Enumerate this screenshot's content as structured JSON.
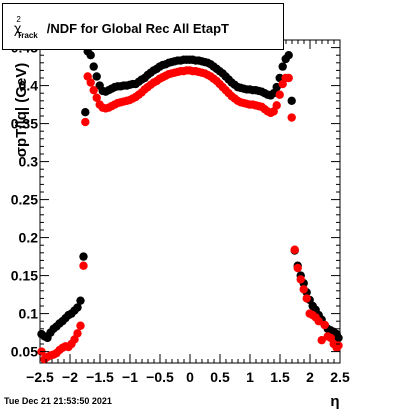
{
  "header": {
    "title_prefix": "χ",
    "title_sup": "2",
    "title_sub": "Track",
    "title_rest": "/NDF for Global Rec All EtapT"
  },
  "footer": {
    "timestamp": "Tue Dec 21 21:53:50 2021"
  },
  "chart_data": {
    "type": "scatter",
    "title": "χ²_Track/NDF for Global Rec All EtapT",
    "xlabel": "η",
    "ylabel": "σpT/|q| (GeV)",
    "xlim": [
      -2.5,
      2.5
    ],
    "ylim": [
      0.035,
      0.46
    ],
    "x_ticks": [
      -2.5,
      -2,
      -1.5,
      -1,
      -0.5,
      0,
      0.5,
      1,
      1.5,
      2,
      2.5
    ],
    "x_tick_labels": [
      "−2.5",
      "−2",
      "−1.5",
      "−1",
      "−0.5",
      "0",
      "0.5",
      "1",
      "1.5",
      "2",
      "2.5"
    ],
    "y_ticks": [
      0.05,
      0.1,
      0.15,
      0.2,
      0.25,
      0.3,
      0.35,
      0.4,
      0.45
    ],
    "y_tick_labels": [
      "0.05",
      "0.1",
      "0.15",
      "0.2",
      "0.25",
      "0.3",
      "0.35",
      "0.4",
      "0.45"
    ],
    "series": [
      {
        "color": "#000000",
        "points": [
          [
            -2.475,
            0.073
          ],
          [
            -2.425,
            0.07
          ],
          [
            -2.375,
            0.068
          ],
          [
            -2.325,
            0.075
          ],
          [
            -2.275,
            0.08
          ],
          [
            -2.225,
            0.083
          ],
          [
            -2.175,
            0.087
          ],
          [
            -2.125,
            0.09
          ],
          [
            -2.075,
            0.094
          ],
          [
            -2.025,
            0.098
          ],
          [
            -1.975,
            0.1
          ],
          [
            -1.925,
            0.104
          ],
          [
            -1.875,
            0.108
          ],
          [
            -1.825,
            0.117
          ],
          [
            -1.775,
            0.175
          ],
          [
            -1.745,
            0.365
          ],
          [
            -1.705,
            0.445
          ],
          [
            -1.655,
            0.44
          ],
          [
            -1.605,
            0.425
          ],
          [
            -1.555,
            0.412
          ],
          [
            -1.505,
            0.4
          ],
          [
            -1.455,
            0.393
          ],
          [
            -1.405,
            0.392
          ],
          [
            -1.355,
            0.394
          ],
          [
            -1.305,
            0.396
          ],
          [
            -1.255,
            0.398
          ],
          [
            -1.205,
            0.399
          ],
          [
            -1.155,
            0.399
          ],
          [
            -1.105,
            0.4
          ],
          [
            -1.055,
            0.4
          ],
          [
            -1.005,
            0.401
          ],
          [
            -0.955,
            0.402
          ],
          [
            -0.905,
            0.402
          ],
          [
            -0.855,
            0.405
          ],
          [
            -0.805,
            0.408
          ],
          [
            -0.755,
            0.41
          ],
          [
            -0.705,
            0.414
          ],
          [
            -0.655,
            0.417
          ],
          [
            -0.605,
            0.42
          ],
          [
            -0.555,
            0.422
          ],
          [
            -0.505,
            0.425
          ],
          [
            -0.455,
            0.427
          ],
          [
            -0.405,
            0.428
          ],
          [
            -0.355,
            0.43
          ],
          [
            -0.305,
            0.431
          ],
          [
            -0.255,
            0.432
          ],
          [
            -0.205,
            0.433
          ],
          [
            -0.155,
            0.433
          ],
          [
            -0.105,
            0.434
          ],
          [
            -0.055,
            0.434
          ],
          [
            -0.005,
            0.434
          ],
          [
            0.045,
            0.434
          ],
          [
            0.095,
            0.433
          ],
          [
            0.145,
            0.433
          ],
          [
            0.195,
            0.432
          ],
          [
            0.245,
            0.431
          ],
          [
            0.295,
            0.43
          ],
          [
            0.345,
            0.428
          ],
          [
            0.395,
            0.425
          ],
          [
            0.445,
            0.422
          ],
          [
            0.495,
            0.419
          ],
          [
            0.545,
            0.416
          ],
          [
            0.595,
            0.412
          ],
          [
            0.645,
            0.408
          ],
          [
            0.695,
            0.404
          ],
          [
            0.745,
            0.401
          ],
          [
            0.795,
            0.398
          ],
          [
            0.845,
            0.397
          ],
          [
            0.895,
            0.396
          ],
          [
            0.945,
            0.395
          ],
          [
            0.995,
            0.395
          ],
          [
            1.045,
            0.394
          ],
          [
            1.095,
            0.394
          ],
          [
            1.145,
            0.393
          ],
          [
            1.195,
            0.392
          ],
          [
            1.245,
            0.39
          ],
          [
            1.295,
            0.388
          ],
          [
            1.345,
            0.387
          ],
          [
            1.395,
            0.39
          ],
          [
            1.445,
            0.398
          ],
          [
            1.495,
            0.41
          ],
          [
            1.545,
            0.425
          ],
          [
            1.595,
            0.435
          ],
          [
            1.645,
            0.44
          ],
          [
            1.695,
            0.38
          ],
          [
            1.745,
            0.183
          ],
          [
            1.795,
            0.163
          ],
          [
            1.845,
            0.15
          ],
          [
            1.895,
            0.14
          ],
          [
            1.945,
            0.128
          ],
          [
            1.995,
            0.118
          ],
          [
            2.045,
            0.11
          ],
          [
            2.095,
            0.105
          ],
          [
            2.145,
            0.098
          ],
          [
            2.195,
            0.092
          ],
          [
            2.245,
            0.085
          ],
          [
            2.295,
            0.08
          ],
          [
            2.345,
            0.078
          ],
          [
            2.395,
            0.076
          ],
          [
            2.445,
            0.073
          ],
          [
            2.475,
            0.068
          ]
        ]
      },
      {
        "color": "#ff0000",
        "points": [
          [
            -2.475,
            0.05
          ],
          [
            -2.425,
            0.04
          ],
          [
            -2.375,
            0.043
          ],
          [
            -2.325,
            0.045
          ],
          [
            -2.275,
            0.046
          ],
          [
            -2.225,
            0.048
          ],
          [
            -2.175,
            0.052
          ],
          [
            -2.125,
            0.055
          ],
          [
            -2.075,
            0.057
          ],
          [
            -2.025,
            0.056
          ],
          [
            -1.975,
            0.06
          ],
          [
            -1.925,
            0.066
          ],
          [
            -1.875,
            0.074
          ],
          [
            -1.825,
            0.084
          ],
          [
            -1.775,
            0.163
          ],
          [
            -1.745,
            0.352
          ],
          [
            -1.705,
            0.412
          ],
          [
            -1.655,
            0.404
          ],
          [
            -1.605,
            0.394
          ],
          [
            -1.555,
            0.384
          ],
          [
            -1.505,
            0.375
          ],
          [
            -1.455,
            0.371
          ],
          [
            -1.405,
            0.37
          ],
          [
            -1.355,
            0.371
          ],
          [
            -1.305,
            0.373
          ],
          [
            -1.255,
            0.375
          ],
          [
            -1.205,
            0.377
          ],
          [
            -1.155,
            0.378
          ],
          [
            -1.105,
            0.379
          ],
          [
            -1.055,
            0.38
          ],
          [
            -1.005,
            0.381
          ],
          [
            -0.955,
            0.383
          ],
          [
            -0.905,
            0.385
          ],
          [
            -0.855,
            0.388
          ],
          [
            -0.805,
            0.391
          ],
          [
            -0.755,
            0.395
          ],
          [
            -0.705,
            0.398
          ],
          [
            -0.655,
            0.401
          ],
          [
            -0.605,
            0.404
          ],
          [
            -0.555,
            0.406
          ],
          [
            -0.505,
            0.409
          ],
          [
            -0.455,
            0.411
          ],
          [
            -0.405,
            0.413
          ],
          [
            -0.355,
            0.415
          ],
          [
            -0.305,
            0.416
          ],
          [
            -0.255,
            0.417
          ],
          [
            -0.205,
            0.418
          ],
          [
            -0.155,
            0.419
          ],
          [
            -0.105,
            0.419
          ],
          [
            -0.055,
            0.42
          ],
          [
            -0.005,
            0.42
          ],
          [
            0.045,
            0.419
          ],
          [
            0.095,
            0.419
          ],
          [
            0.145,
            0.418
          ],
          [
            0.195,
            0.417
          ],
          [
            0.245,
            0.416
          ],
          [
            0.295,
            0.414
          ],
          [
            0.345,
            0.412
          ],
          [
            0.395,
            0.409
          ],
          [
            0.445,
            0.406
          ],
          [
            0.495,
            0.402
          ],
          [
            0.545,
            0.398
          ],
          [
            0.595,
            0.394
          ],
          [
            0.645,
            0.39
          ],
          [
            0.695,
            0.386
          ],
          [
            0.745,
            0.383
          ],
          [
            0.795,
            0.38
          ],
          [
            0.845,
            0.378
          ],
          [
            0.895,
            0.377
          ],
          [
            0.945,
            0.376
          ],
          [
            0.995,
            0.375
          ],
          [
            1.045,
            0.375
          ],
          [
            1.095,
            0.374
          ],
          [
            1.145,
            0.373
          ],
          [
            1.195,
            0.372
          ],
          [
            1.245,
            0.369
          ],
          [
            1.295,
            0.366
          ],
          [
            1.345,
            0.364
          ],
          [
            1.395,
            0.366
          ],
          [
            1.445,
            0.374
          ],
          [
            1.495,
            0.388
          ],
          [
            1.545,
            0.402
          ],
          [
            1.595,
            0.41
          ],
          [
            1.645,
            0.41
          ],
          [
            1.695,
            0.358
          ],
          [
            1.745,
            0.184
          ],
          [
            1.795,
            0.16
          ],
          [
            1.845,
            0.145
          ],
          [
            1.895,
            0.132
          ],
          [
            1.945,
            0.12
          ],
          [
            1.995,
            0.1
          ],
          [
            2.045,
            0.098
          ],
          [
            2.095,
            0.095
          ],
          [
            2.145,
            0.09
          ],
          [
            2.195,
            0.065
          ],
          [
            2.245,
            0.085
          ],
          [
            2.295,
            0.07
          ],
          [
            2.345,
            0.068
          ],
          [
            2.395,
            0.06
          ],
          [
            2.445,
            0.055
          ],
          [
            2.475,
            0.058
          ]
        ]
      }
    ]
  }
}
